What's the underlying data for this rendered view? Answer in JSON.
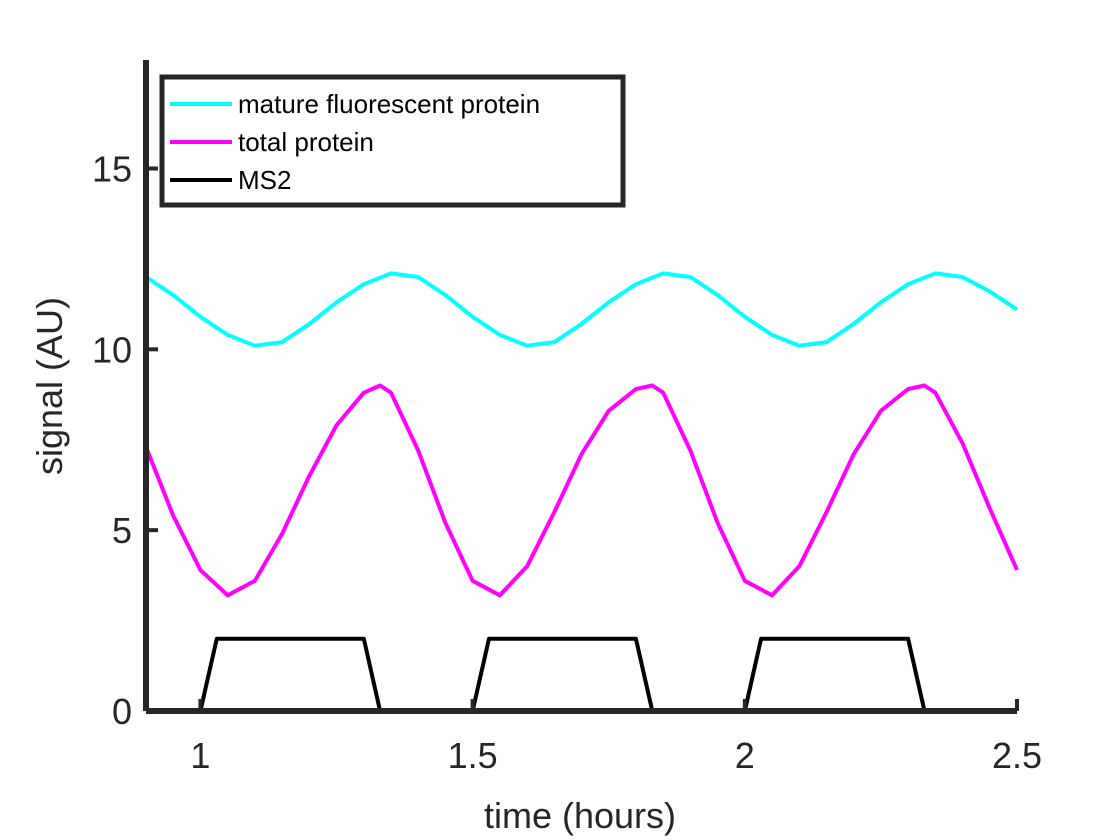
{
  "chart_data": {
    "type": "line",
    "title": "",
    "xlabel": "time (hours)",
    "ylabel": "signal (AU)",
    "xlim": [
      0.9,
      2.5
    ],
    "ylim": [
      0,
      18
    ],
    "xticks": [
      1,
      1.5,
      2,
      2.5
    ],
    "xtick_labels": [
      "1",
      "1.5",
      "2",
      "2.5"
    ],
    "yticks": [
      0,
      5,
      10,
      15
    ],
    "ytick_labels": [
      "0",
      "5",
      "10",
      "15"
    ],
    "grid": false,
    "legend_position": "top-left",
    "series": [
      {
        "name": "mature fluorescent protein",
        "color": "#00ffff",
        "x": [
          0.9,
          0.95,
          1.0,
          1.05,
          1.1,
          1.15,
          1.2,
          1.25,
          1.3,
          1.35,
          1.4,
          1.45,
          1.5,
          1.55,
          1.6,
          1.65,
          1.7,
          1.75,
          1.8,
          1.85,
          1.9,
          1.95,
          2.0,
          2.05,
          2.1,
          2.15,
          2.2,
          2.25,
          2.3,
          2.35,
          2.4,
          2.45,
          2.5
        ],
        "y": [
          12.0,
          11.5,
          10.9,
          10.4,
          10.1,
          10.2,
          10.7,
          11.3,
          11.8,
          12.1,
          12.0,
          11.5,
          10.9,
          10.4,
          10.1,
          10.2,
          10.7,
          11.3,
          11.8,
          12.1,
          12.0,
          11.5,
          10.9,
          10.4,
          10.1,
          10.2,
          10.7,
          11.3,
          11.8,
          12.1,
          12.0,
          11.6,
          11.1
        ]
      },
      {
        "name": "total protein",
        "color": "#ff00ff",
        "x": [
          0.9,
          0.95,
          1.0,
          1.05,
          1.1,
          1.15,
          1.2,
          1.25,
          1.3,
          1.33,
          1.35,
          1.4,
          1.45,
          1.5,
          1.55,
          1.6,
          1.65,
          1.7,
          1.75,
          1.8,
          1.83,
          1.85,
          1.9,
          1.95,
          2.0,
          2.05,
          2.1,
          2.15,
          2.2,
          2.25,
          2.3,
          2.33,
          2.35,
          2.4,
          2.45,
          2.5
        ],
        "y": [
          7.3,
          5.4,
          3.9,
          3.2,
          3.6,
          4.9,
          6.5,
          7.9,
          8.8,
          9.0,
          8.8,
          7.2,
          5.2,
          3.6,
          3.2,
          4.0,
          5.5,
          7.1,
          8.3,
          8.9,
          9.0,
          8.8,
          7.2,
          5.2,
          3.6,
          3.2,
          4.0,
          5.5,
          7.1,
          8.3,
          8.9,
          9.0,
          8.8,
          7.4,
          5.6,
          3.9
        ]
      },
      {
        "name": "MS2",
        "color": "#000000",
        "x": [
          1.0,
          1.03,
          1.3,
          1.33,
          1.5,
          1.53,
          1.8,
          1.83,
          2.0,
          2.03,
          2.3,
          2.33
        ],
        "y": [
          0,
          2,
          2,
          0,
          0,
          2,
          2,
          0,
          0,
          2,
          2,
          0
        ],
        "segments": [
          [
            0,
            3
          ],
          [
            4,
            7
          ],
          [
            8,
            11
          ]
        ]
      }
    ]
  }
}
